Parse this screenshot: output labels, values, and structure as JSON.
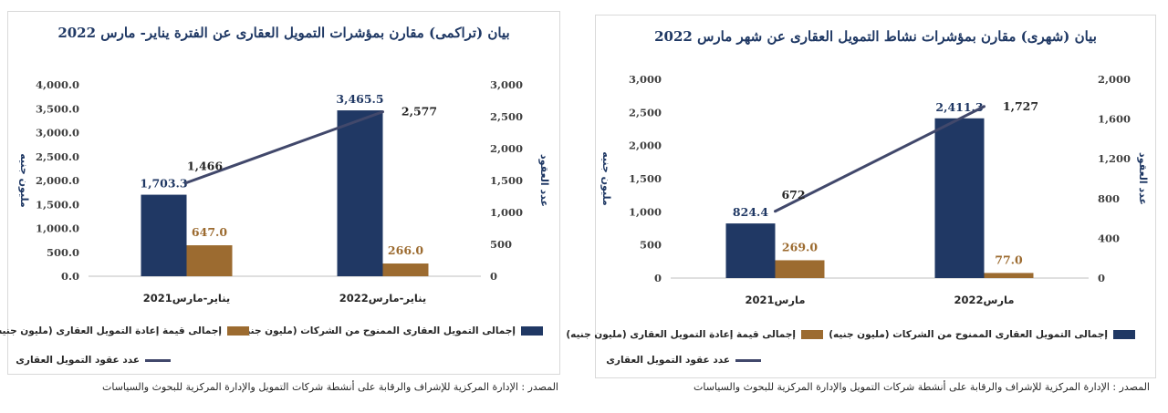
{
  "colors": {
    "bar1": "#203864",
    "bar2": "#9c6b30",
    "line": "#41486b",
    "title": "#1f3864"
  },
  "source_left": "المصدر : الإدارة المركزية للإشراف والرقابة على أنشطة شركات التمويل والإدارة المركزية للبحوث والسياسات",
  "source_right": "المصدر : الإدارة المركزية للإشراف والرقابة على أنشطة شركات التمويل والإدارة المركزية للبحوث والسياسات",
  "chart_data": [
    {
      "type": "bar",
      "title": "بيان (تراكمى) مقارن بمؤشرات التمويل العقارى عن الفترة يناير- مارس 2022",
      "categories": [
        "يناير-مارس2021",
        "يناير-مارس2022"
      ],
      "ylabel": "مليون جنيه",
      "y2label": "عدد العقود",
      "ylim": [
        0,
        4000
      ],
      "y2lim": [
        0,
        3000
      ],
      "yticks": [
        "0.0",
        "500.0",
        "1,000.0",
        "1,500.0",
        "2,000.0",
        "2,500.0",
        "3,000.0",
        "3,500.0",
        "4,000.0"
      ],
      "y2ticks": [
        "0",
        "500",
        "1,000",
        "1,500",
        "2,000",
        "2,500",
        "3,000"
      ],
      "series": [
        {
          "name": "إجمالى التمويل العقارى الممنوح من الشركات (مليون جنيه)",
          "values": [
            1703.3,
            3465.5
          ],
          "labels": [
            "1,703.3",
            "3,465.5"
          ]
        },
        {
          "name": "إجمالى قيمة إعادة التمويل العقارى (مليون جنيه)",
          "values": [
            647.0,
            266.0
          ],
          "labels": [
            "647.0",
            "266.0"
          ]
        },
        {
          "name": "عدد عقود التمويل العقارى",
          "type": "line",
          "axis": "right",
          "values": [
            1466,
            2577
          ],
          "labels": [
            "1,466",
            "2,577"
          ]
        }
      ],
      "grid": false,
      "legend": "bottom"
    },
    {
      "type": "bar",
      "title": "بيان (شهرى) مقارن بمؤشرات نشاط التمويل العقارى عن شهر مارس 2022",
      "categories": [
        "مارس2021",
        "مارس2022"
      ],
      "ylabel": "مليون جنيه",
      "y2label": "عدد العقود",
      "ylim": [
        0,
        3000
      ],
      "y2lim": [
        0,
        2000
      ],
      "yticks": [
        "0",
        "500",
        "1,000",
        "1,500",
        "2,000",
        "2,500",
        "3,000"
      ],
      "y2ticks": [
        "0",
        "400",
        "800",
        "1,200",
        "1,600",
        "2,000"
      ],
      "series": [
        {
          "name": "إجمالى التمويل العقارى الممنوح من الشركات (مليون جنيه)",
          "values": [
            824.4,
            2411.3
          ],
          "labels": [
            "824.4",
            "2,411.3"
          ]
        },
        {
          "name": "إجمالى قيمة إعادة التمويل العقارى (مليون جنيه)",
          "values": [
            269.0,
            77.0
          ],
          "labels": [
            "269.0",
            "77.0"
          ]
        },
        {
          "name": "عدد عقود التمويل العقارى",
          "type": "line",
          "axis": "right",
          "values": [
            672,
            1727
          ],
          "labels": [
            "672",
            "1,727"
          ]
        }
      ],
      "grid": false,
      "legend": "bottom"
    }
  ]
}
